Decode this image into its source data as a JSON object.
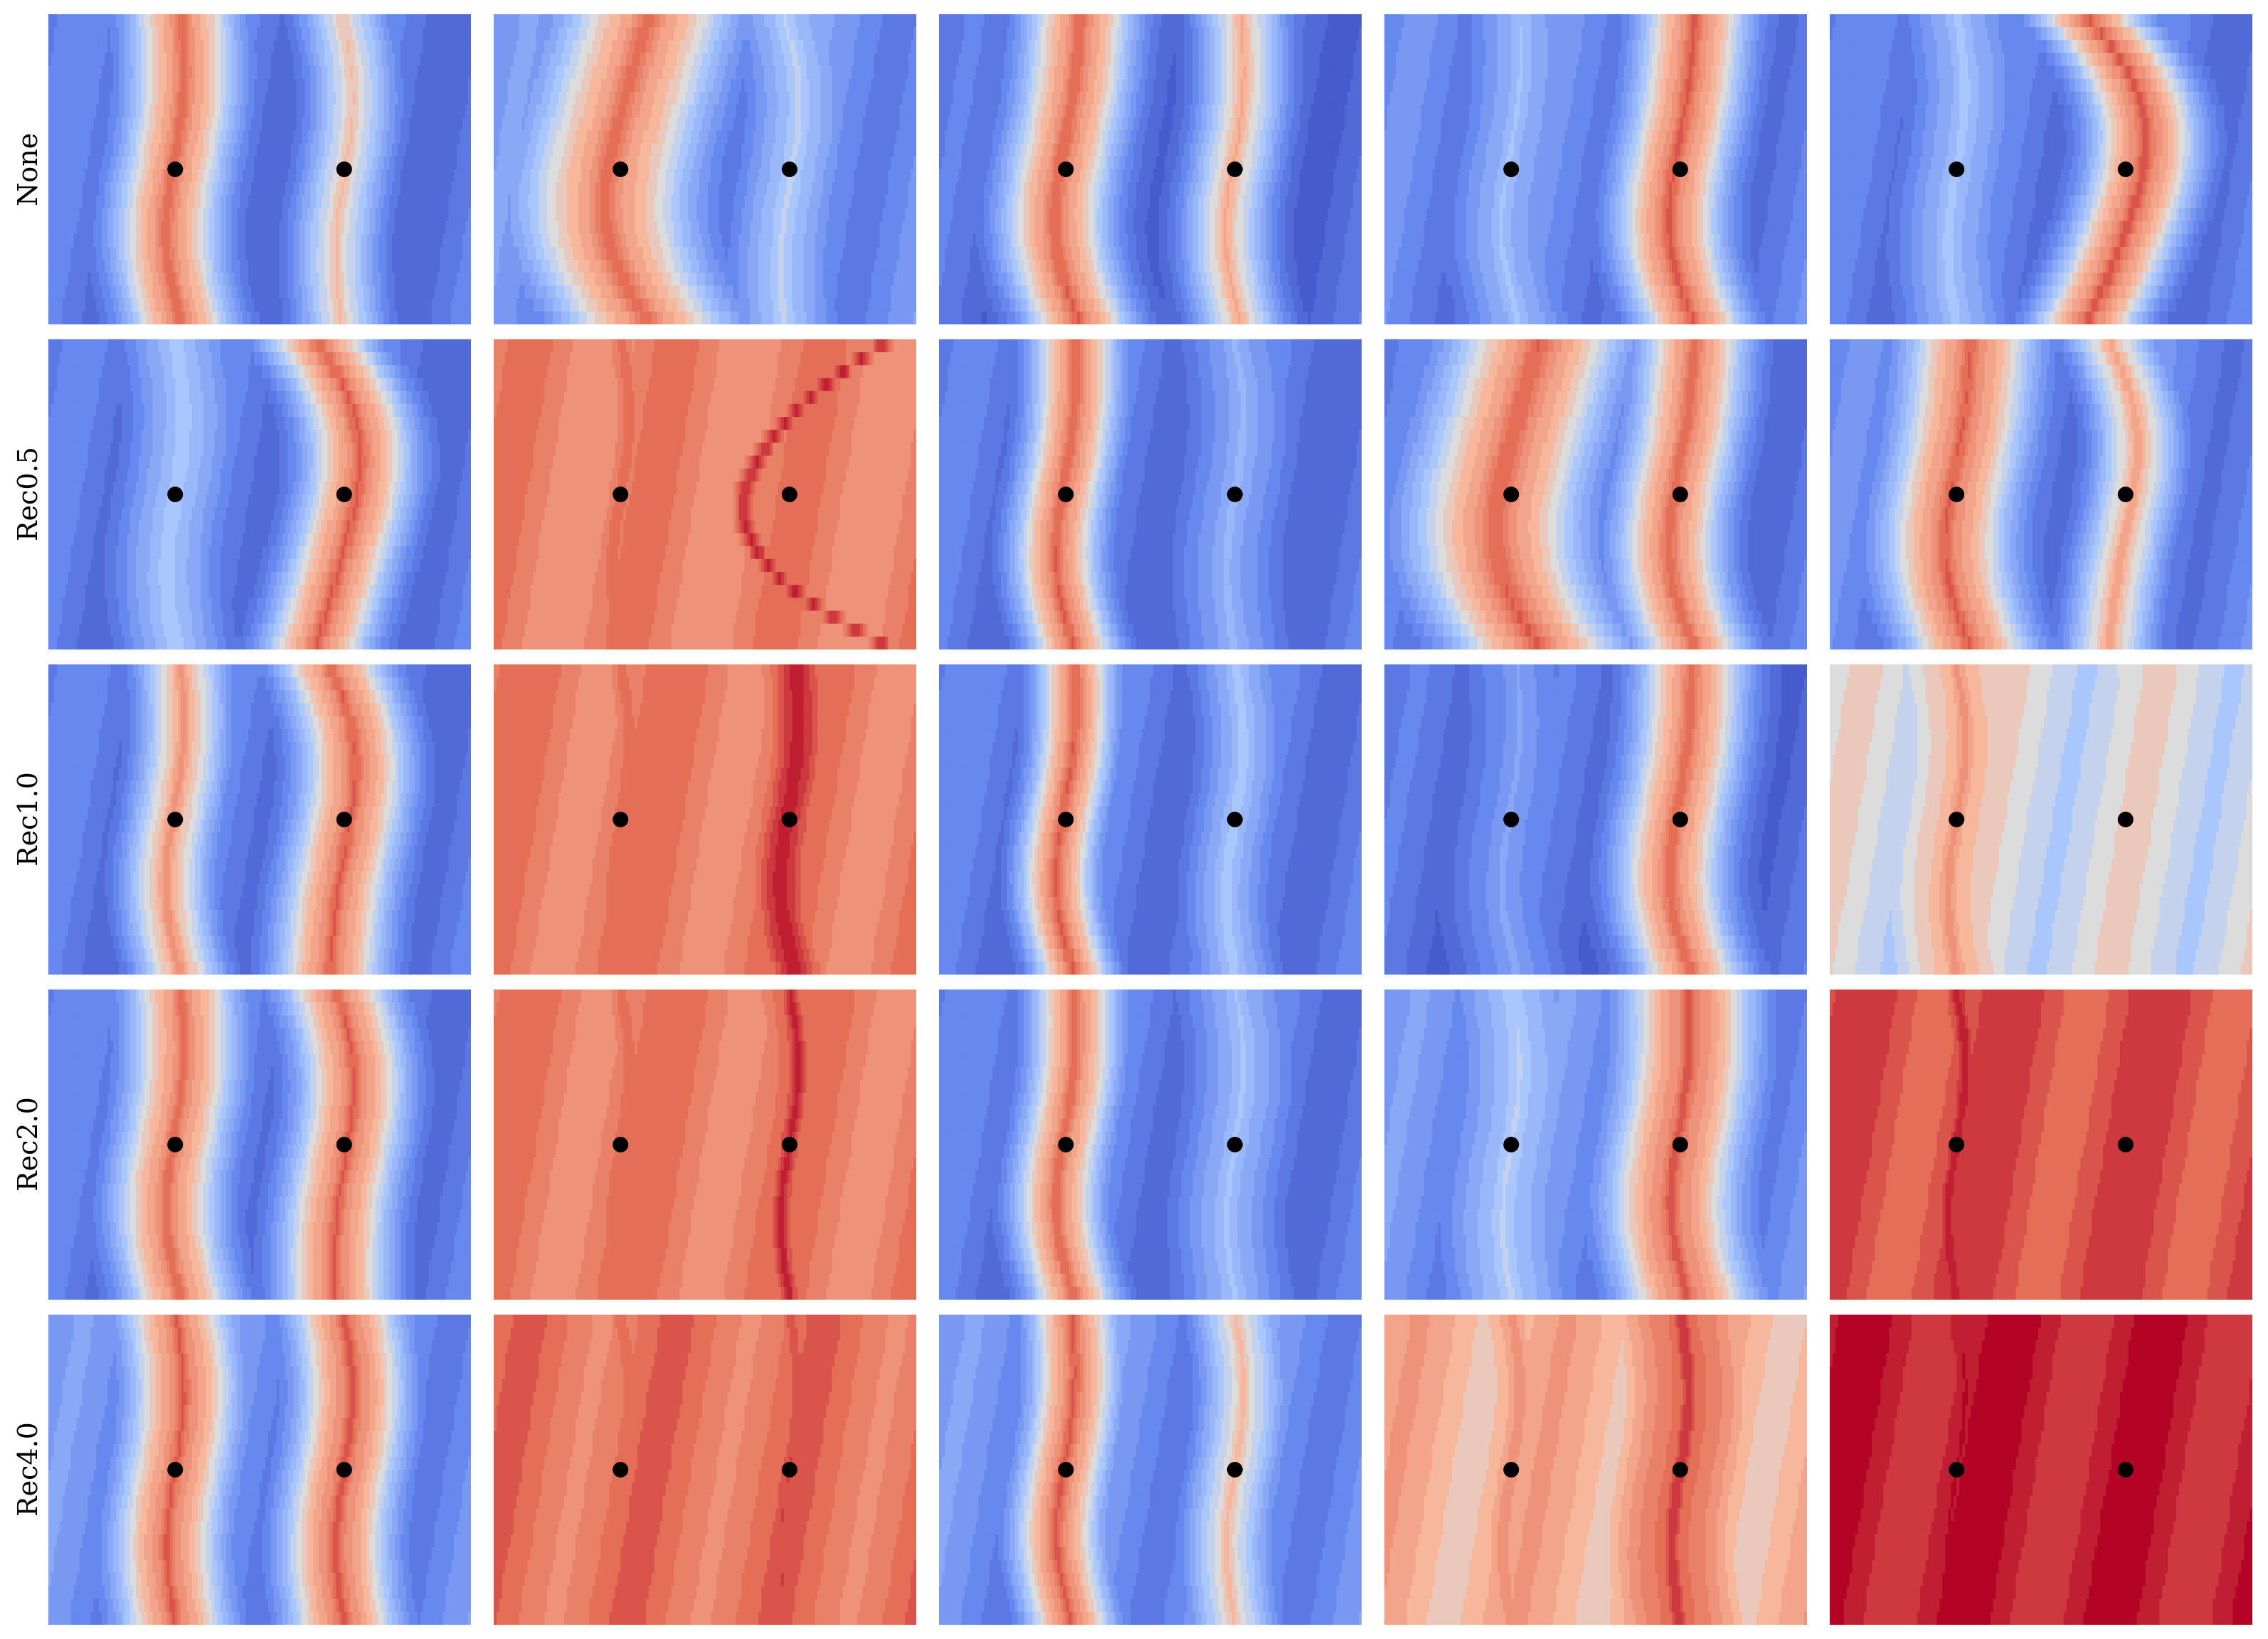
{
  "chart_data": {
    "type": "heatmap",
    "rows": [
      "None",
      "Rec0.5",
      "Rec1.0",
      "Rec2.0",
      "Rec4.0"
    ],
    "columns": 5,
    "colormap": "coolwarm",
    "points_per_panel": 2,
    "grid": false,
    "axes_visible": false,
    "panels": [
      [
        {
          "base": 0.15,
          "ridges": [
            {
              "x": 0.3,
              "amp": 0.88,
              "w": 0.1,
              "sharp": 0.012,
              "bend": 0.02
            },
            {
              "x": 0.7,
              "amp": 0.62,
              "w": 0.08,
              "sharp": 0.012,
              "bend": -0.01
            }
          ]
        },
        {
          "base": 0.22,
          "ridges": [
            {
              "x": 0.3,
              "amp": 0.86,
              "w": 0.16,
              "sharp": 0.02,
              "bend": 0.1
            },
            {
              "x": 0.7,
              "amp": 0.45,
              "w": 0.1,
              "sharp": 0.015,
              "bend": -0.02
            }
          ]
        },
        {
          "base": 0.12,
          "ridges": [
            {
              "x": 0.3,
              "amp": 0.9,
              "w": 0.1,
              "sharp": 0.012,
              "bend": 0.05
            },
            {
              "x": 0.7,
              "amp": 0.68,
              "w": 0.08,
              "sharp": 0.012,
              "bend": 0.02
            }
          ]
        },
        {
          "base": 0.18,
          "ridges": [
            {
              "x": 0.3,
              "amp": 0.4,
              "w": 0.1,
              "sharp": 0.012,
              "bend": 0.03
            },
            {
              "x": 0.7,
              "amp": 0.9,
              "w": 0.1,
              "sharp": 0.012,
              "bend": 0.05
            }
          ]
        },
        {
          "base": 0.16,
          "ridges": [
            {
              "x": 0.3,
              "amp": 0.42,
              "w": 0.1,
              "sharp": 0.012,
              "bend": 0.0
            },
            {
              "x": 0.7,
              "amp": 0.92,
              "w": 0.1,
              "sharp": 0.012,
              "bend": -0.14
            }
          ]
        }
      ],
      [
        {
          "base": 0.14,
          "ridges": [
            {
              "x": 0.3,
              "amp": 0.45,
              "w": 0.1,
              "sharp": 0.012,
              "bend": 0.0
            },
            {
              "x": 0.7,
              "amp": 0.9,
              "w": 0.1,
              "sharp": 0.012,
              "bend": -0.1
            }
          ]
        },
        {
          "base": 0.74,
          "ridges": [
            {
              "x": 0.3,
              "amp": 0.8,
              "w": 0.2,
              "sharp": 0.02,
              "bend": 0.0
            },
            {
              "x": 0.7,
              "amp": 0.95,
              "w": 0.06,
              "sharp": 0.012,
              "bend": 0.35
            }
          ]
        },
        {
          "base": 0.14,
          "ridges": [
            {
              "x": 0.3,
              "amp": 0.9,
              "w": 0.08,
              "sharp": 0.01,
              "bend": 0.03
            },
            {
              "x": 0.7,
              "amp": 0.35,
              "w": 0.1,
              "sharp": 0.015,
              "bend": 0.0
            }
          ]
        },
        {
          "base": 0.14,
          "ridges": [
            {
              "x": 0.3,
              "amp": 0.9,
              "w": 0.16,
              "sharp": 0.02,
              "bend": 0.1
            },
            {
              "x": 0.7,
              "amp": 0.88,
              "w": 0.1,
              "sharp": 0.012,
              "bend": 0.05
            }
          ]
        },
        {
          "base": 0.18,
          "ridges": [
            {
              "x": 0.3,
              "amp": 0.9,
              "w": 0.12,
              "sharp": 0.012,
              "bend": 0.05
            },
            {
              "x": 0.7,
              "amp": 0.7,
              "w": 0.08,
              "sharp": 0.012,
              "bend": -0.06
            }
          ]
        }
      ],
      [
        {
          "base": 0.15,
          "ridges": [
            {
              "x": 0.3,
              "amp": 0.75,
              "w": 0.08,
              "sharp": 0.012,
              "bend": 0.02
            },
            {
              "x": 0.7,
              "amp": 0.9,
              "w": 0.1,
              "sharp": 0.01,
              "bend": -0.05
            }
          ]
        },
        {
          "base": 0.76,
          "ridges": [
            {
              "x": 0.3,
              "amp": 0.8,
              "w": 0.22,
              "sharp": 0.02,
              "bend": 0.0
            },
            {
              "x": 0.7,
              "amp": 0.96,
              "w": 0.16,
              "sharp": 0.03,
              "bend": 0.02
            }
          ]
        },
        {
          "base": 0.16,
          "ridges": [
            {
              "x": 0.3,
              "amp": 0.9,
              "w": 0.07,
              "sharp": 0.01,
              "bend": 0.03
            },
            {
              "x": 0.7,
              "amp": 0.42,
              "w": 0.08,
              "sharp": 0.012,
              "bend": 0.0
            }
          ]
        },
        {
          "base": 0.12,
          "ridges": [
            {
              "x": 0.3,
              "amp": 0.3,
              "w": 0.1,
              "sharp": 0.012,
              "bend": 0.02
            },
            {
              "x": 0.7,
              "amp": 0.88,
              "w": 0.1,
              "sharp": 0.012,
              "bend": 0.04
            }
          ]
        },
        {
          "base": 0.48,
          "ridges": [
            {
              "x": 0.3,
              "amp": 0.72,
              "w": 0.16,
              "sharp": 0.012,
              "bend": 0.0
            },
            {
              "x": 0.7,
              "amp": 0.52,
              "w": 0.18,
              "sharp": 0.02,
              "bend": 0.0
            }
          ]
        }
      ],
      [
        {
          "base": 0.16,
          "ridges": [
            {
              "x": 0.3,
              "amp": 0.88,
              "w": 0.1,
              "sharp": 0.01,
              "bend": 0.02
            },
            {
              "x": 0.7,
              "amp": 0.9,
              "w": 0.1,
              "sharp": 0.01,
              "bend": -0.03
            }
          ]
        },
        {
          "base": 0.76,
          "ridges": [
            {
              "x": 0.3,
              "amp": 0.8,
              "w": 0.22,
              "sharp": 0.02,
              "bend": 0.0
            },
            {
              "x": 0.7,
              "amp": 0.96,
              "w": 0.14,
              "sharp": 0.01,
              "bend": 0.0
            }
          ]
        },
        {
          "base": 0.16,
          "ridges": [
            {
              "x": 0.3,
              "amp": 0.88,
              "w": 0.08,
              "sharp": 0.01,
              "bend": 0.03
            },
            {
              "x": 0.7,
              "amp": 0.4,
              "w": 0.1,
              "sharp": 0.015,
              "bend": 0.0
            }
          ]
        },
        {
          "base": 0.22,
          "ridges": [
            {
              "x": 0.3,
              "amp": 0.45,
              "w": 0.12,
              "sharp": 0.015,
              "bend": 0.0
            },
            {
              "x": 0.7,
              "amp": 0.92,
              "w": 0.12,
              "sharp": 0.01,
              "bend": 0.03
            }
          ]
        },
        {
          "base": 0.86,
          "ridges": [
            {
              "x": 0.3,
              "amp": 0.96,
              "w": 0.2,
              "sharp": 0.012,
              "bend": 0.0
            },
            {
              "x": 0.7,
              "amp": 0.82,
              "w": 0.14,
              "sharp": 0.02,
              "bend": 0.0
            }
          ]
        }
      ],
      [
        {
          "base": 0.22,
          "ridges": [
            {
              "x": 0.3,
              "amp": 0.9,
              "w": 0.1,
              "sharp": 0.01,
              "bend": 0.0
            },
            {
              "x": 0.7,
              "amp": 0.92,
              "w": 0.1,
              "sharp": 0.01,
              "bend": 0.0
            }
          ]
        },
        {
          "base": 0.78,
          "ridges": [
            {
              "x": 0.3,
              "amp": 0.82,
              "w": 0.18,
              "sharp": 0.015,
              "bend": 0.0
            },
            {
              "x": 0.7,
              "amp": 0.88,
              "w": 0.22,
              "sharp": 0.01,
              "bend": 0.0
            }
          ]
        },
        {
          "base": 0.22,
          "ridges": [
            {
              "x": 0.3,
              "amp": 0.9,
              "w": 0.08,
              "sharp": 0.01,
              "bend": 0.02
            },
            {
              "x": 0.7,
              "amp": 0.62,
              "w": 0.08,
              "sharp": 0.012,
              "bend": 0.0
            }
          ]
        },
        {
          "base": 0.62,
          "ridges": [
            {
              "x": 0.3,
              "amp": 0.7,
              "w": 0.2,
              "sharp": 0.02,
              "bend": 0.0
            },
            {
              "x": 0.7,
              "amp": 0.95,
              "w": 0.18,
              "sharp": 0.01,
              "bend": 0.0
            }
          ]
        },
        {
          "base": 0.95,
          "ridges": [
            {
              "x": 0.3,
              "amp": 0.98,
              "w": 0.28,
              "sharp": 0.02,
              "bend": 0.0
            },
            {
              "x": 0.7,
              "amp": 0.88,
              "w": 0.14,
              "sharp": 0.02,
              "bend": 0.0
            }
          ]
        }
      ]
    ],
    "point_positions": [
      [
        0.3,
        0.5
      ],
      [
        0.7,
        0.5
      ]
    ]
  }
}
